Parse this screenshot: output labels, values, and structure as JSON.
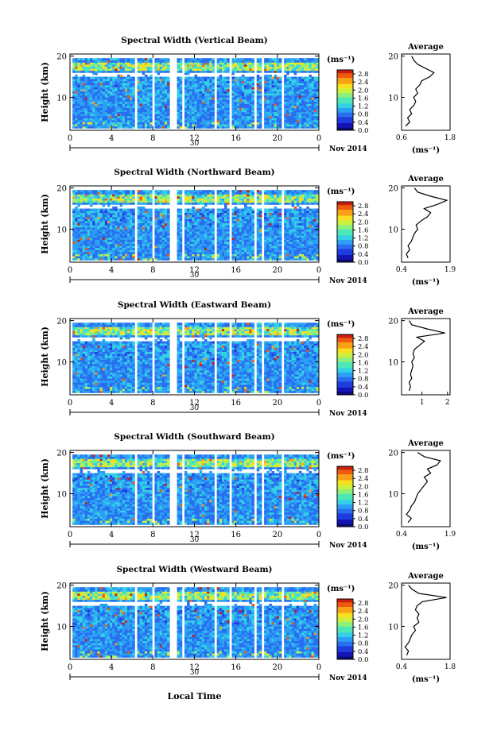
{
  "figure": {
    "time_axis_label": "Local Time",
    "date_label": "Nov 2014",
    "day_label": "30",
    "colorbar_unit": "(ms⁻¹)",
    "average_title": "Average",
    "average_xlabel": "(ms⁻¹)",
    "height_label": "Height (km)"
  },
  "chart_data": [
    {
      "type": "heatmap",
      "title": "Spectral Width (Vertical Beam)",
      "ylabel": "Height (km)",
      "xlabel": "Local Time",
      "x_ticks": [
        "0",
        "4",
        "8",
        "12",
        "16",
        "20",
        "0"
      ],
      "y_ticks": [
        "10",
        "20"
      ],
      "xlim": [
        0,
        24
      ],
      "ylim": [
        2,
        20.5
      ],
      "colorbar": {
        "unit": "(ms⁻¹)",
        "ticks": [
          "0.0",
          "0.4",
          "0.8",
          "1.2",
          "1.6",
          "2.0",
          "2.4",
          "2.8"
        ],
        "range": [
          0,
          3.0
        ]
      },
      "data_gaps_hours": [
        [
          0.0,
          0.2
        ],
        [
          6.3,
          6.6
        ],
        [
          7.9,
          8.1
        ],
        [
          9.6,
          10.2
        ],
        [
          10.8,
          11.0
        ],
        [
          14.0,
          14.2
        ],
        [
          15.4,
          15.6
        ],
        [
          17.8,
          18.0
        ],
        [
          18.6,
          18.8
        ],
        [
          20.4,
          20.7
        ]
      ],
      "average_profile": {
        "xlim": [
          0.6,
          1.8
        ],
        "xticks": [
          "0.6",
          "1.8"
        ],
        "xlabel": "(ms⁻¹)",
        "height_km": [
          3,
          4,
          5,
          6,
          7,
          8,
          9,
          10,
          11,
          12,
          13,
          14,
          15,
          16,
          17,
          18,
          19,
          20
        ],
        "values": [
          0.7,
          0.8,
          0.75,
          0.85,
          0.8,
          0.9,
          0.95,
          0.9,
          1.0,
          0.95,
          1.05,
          1.1,
          1.3,
          1.4,
          1.2,
          1.0,
          0.9,
          0.85
        ]
      }
    },
    {
      "type": "heatmap",
      "title": "Spectral Width (Northward Beam)",
      "ylabel": "Height (km)",
      "xlabel": "Local Time",
      "x_ticks": [
        "0",
        "4",
        "8",
        "12",
        "16",
        "20",
        "0"
      ],
      "y_ticks": [
        "10",
        "20"
      ],
      "xlim": [
        0,
        24
      ],
      "ylim": [
        2,
        20.5
      ],
      "colorbar": {
        "unit": "(ms⁻¹)",
        "ticks": [
          "0.0",
          "0.4",
          "0.8",
          "1.2",
          "1.6",
          "2.0",
          "2.4",
          "2.8"
        ],
        "range": [
          0,
          3.0
        ]
      },
      "data_gaps_hours": [
        [
          0.0,
          0.2
        ],
        [
          6.3,
          6.6
        ],
        [
          7.9,
          8.1
        ],
        [
          9.6,
          10.2
        ],
        [
          10.8,
          11.0
        ],
        [
          14.0,
          14.2
        ],
        [
          15.4,
          15.6
        ],
        [
          17.8,
          18.0
        ],
        [
          18.6,
          18.8
        ],
        [
          20.4,
          20.7
        ]
      ],
      "average_profile": {
        "xlim": [
          0.4,
          1.9
        ],
        "xticks": [
          "0.4",
          "1.9"
        ],
        "xlabel": "(ms⁻¹)",
        "height_km": [
          3,
          4,
          5,
          6,
          7,
          8,
          9,
          10,
          11,
          12,
          13,
          14,
          15,
          16,
          17,
          18,
          19,
          20
        ],
        "values": [
          0.6,
          0.55,
          0.65,
          0.6,
          0.7,
          0.75,
          0.8,
          0.9,
          0.85,
          1.0,
          1.2,
          1.3,
          1.1,
          1.5,
          1.8,
          1.3,
          0.9,
          0.8
        ]
      }
    },
    {
      "type": "heatmap",
      "title": "Spectral Width (Eastward Beam)",
      "ylabel": "Height (km)",
      "xlabel": "Local Time",
      "x_ticks": [
        "0",
        "4",
        "8",
        "12",
        "16",
        "20",
        "0"
      ],
      "y_ticks": [
        "10",
        "20"
      ],
      "xlim": [
        0,
        24
      ],
      "ylim": [
        2,
        20.5
      ],
      "colorbar": {
        "unit": "(ms⁻¹)",
        "ticks": [
          "0.0",
          "0.4",
          "0.8",
          "1.2",
          "1.6",
          "2.0",
          "2.4",
          "2.8"
        ],
        "range": [
          0,
          3.0
        ]
      },
      "data_gaps_hours": [
        [
          0.0,
          0.2
        ],
        [
          6.3,
          6.6
        ],
        [
          7.9,
          8.1
        ],
        [
          9.6,
          10.2
        ],
        [
          10.8,
          11.0
        ],
        [
          14.0,
          14.2
        ],
        [
          15.4,
          15.6
        ],
        [
          17.8,
          18.0
        ],
        [
          18.6,
          18.8
        ],
        [
          20.4,
          20.7
        ]
      ],
      "average_profile": {
        "xlim": [
          0.2,
          2.1
        ],
        "xticks": [
          "1",
          "2"
        ],
        "xlabel": "",
        "height_km": [
          3,
          4,
          5,
          6,
          7,
          8,
          9,
          10,
          11,
          12,
          13,
          14,
          15,
          16,
          17,
          18,
          19,
          20
        ],
        "values": [
          0.5,
          0.55,
          0.5,
          0.6,
          0.55,
          0.6,
          0.65,
          0.6,
          0.7,
          0.65,
          0.7,
          0.9,
          1.1,
          0.8,
          1.9,
          1.2,
          0.6,
          0.5
        ]
      }
    },
    {
      "type": "heatmap",
      "title": "Spectral Width (Southward Beam)",
      "ylabel": "Height (km)",
      "xlabel": "Local Time",
      "x_ticks": [
        "0",
        "4",
        "8",
        "12",
        "16",
        "20",
        "0"
      ],
      "y_ticks": [
        "10",
        "20"
      ],
      "xlim": [
        0,
        24
      ],
      "ylim": [
        2,
        20.5
      ],
      "colorbar": {
        "unit": "(ms⁻¹)",
        "ticks": [
          "0.0",
          "0.4",
          "0.8",
          "1.2",
          "1.6",
          "2.0",
          "2.4",
          "2.8"
        ],
        "range": [
          0,
          3.0
        ]
      },
      "data_gaps_hours": [
        [
          0.0,
          0.2
        ],
        [
          6.3,
          6.6
        ],
        [
          7.9,
          8.1
        ],
        [
          9.6,
          10.2
        ],
        [
          10.8,
          11.0
        ],
        [
          14.0,
          14.2
        ],
        [
          15.4,
          15.6
        ],
        [
          17.8,
          18.0
        ],
        [
          18.6,
          18.8
        ],
        [
          20.4,
          20.7
        ]
      ],
      "average_profile": {
        "xlim": [
          0.4,
          1.9
        ],
        "xticks": [
          "0.4",
          "1.9"
        ],
        "xlabel": "(ms⁻¹)",
        "height_km": [
          3,
          4,
          5,
          6,
          7,
          8,
          9,
          10,
          11,
          12,
          13,
          14,
          15,
          16,
          17,
          18,
          19,
          20
        ],
        "values": [
          0.6,
          0.7,
          0.55,
          0.65,
          0.7,
          0.8,
          0.85,
          0.9,
          1.0,
          1.1,
          1.2,
          1.1,
          1.3,
          1.2,
          1.5,
          1.6,
          1.1,
          0.9
        ]
      }
    },
    {
      "type": "heatmap",
      "title": "Spectral Width (Westward Beam)",
      "ylabel": "Height (km)",
      "xlabel": "Local Time",
      "x_ticks": [
        "0",
        "4",
        "8",
        "12",
        "16",
        "20",
        "0"
      ],
      "y_ticks": [
        "10",
        "20"
      ],
      "xlim": [
        0,
        24
      ],
      "ylim": [
        2,
        20.5
      ],
      "colorbar": {
        "unit": "(ms⁻¹)",
        "ticks": [
          "0.0",
          "0.4",
          "0.8",
          "1.2",
          "1.6",
          "2.0",
          "2.4",
          "2.8"
        ],
        "range": [
          0,
          3.0
        ]
      },
      "data_gaps_hours": [
        [
          0.0,
          0.2
        ],
        [
          6.3,
          6.6
        ],
        [
          7.9,
          8.1
        ],
        [
          9.6,
          10.2
        ],
        [
          10.8,
          11.0
        ],
        [
          14.0,
          14.2
        ],
        [
          15.4,
          15.6
        ],
        [
          17.8,
          18.0
        ],
        [
          18.6,
          18.8
        ],
        [
          20.4,
          20.7
        ]
      ],
      "average_profile": {
        "xlim": [
          0.4,
          1.8
        ],
        "xticks": [
          "0.4",
          "1.8"
        ],
        "xlabel": "(ms⁻¹)",
        "height_km": [
          3,
          4,
          5,
          6,
          7,
          8,
          9,
          10,
          11,
          12,
          13,
          14,
          15,
          16,
          17,
          18,
          19,
          20
        ],
        "values": [
          0.55,
          0.6,
          0.5,
          0.6,
          0.65,
          0.7,
          0.8,
          0.75,
          0.9,
          0.85,
          0.9,
          0.8,
          0.85,
          1.0,
          1.7,
          0.9,
          0.7,
          0.6
        ]
      }
    }
  ]
}
